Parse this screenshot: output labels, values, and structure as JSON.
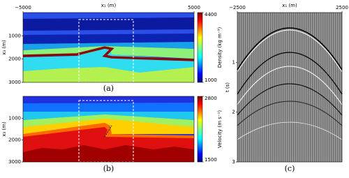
{
  "chart_data": [
    {
      "type": "heatmap",
      "caption": "(a)",
      "xlabel": "x₁ (m)",
      "ylabel": "x₃ (m)",
      "xlim": [
        -5000,
        5000
      ],
      "xticks": [
        {
          "value": -5000,
          "label": "−5000"
        },
        5000
      ],
      "ylim": [
        0,
        3000
      ],
      "yticks": [
        1000,
        2000,
        3000
      ],
      "colormap": "jet",
      "clabel": "Density (kg m⁻³)",
      "clim": [
        1000,
        4400
      ],
      "cticks": [
        1000,
        4400
      ]
    },
    {
      "type": "heatmap",
      "caption": "(b)",
      "ylabel": "x₃ (m)",
      "ylim": [
        0,
        3000
      ],
      "yticks": [
        1000,
        2000,
        3000
      ],
      "colormap": "jet",
      "clabel": "Velocity (m s⁻¹)",
      "clim": [
        1500,
        2800
      ],
      "cticks": [
        1500,
        2800
      ]
    },
    {
      "type": "seismogram",
      "caption": "(c)",
      "xlabel": "x₁ (m)",
      "ylabel": "t (s)",
      "xlim": [
        -2500,
        2500
      ],
      "xticks": [
        {
          "value": -2500,
          "label": "−2500"
        },
        2500
      ],
      "ylim": [
        0,
        3
      ],
      "yticks": [
        1,
        2,
        3
      ]
    }
  ]
}
